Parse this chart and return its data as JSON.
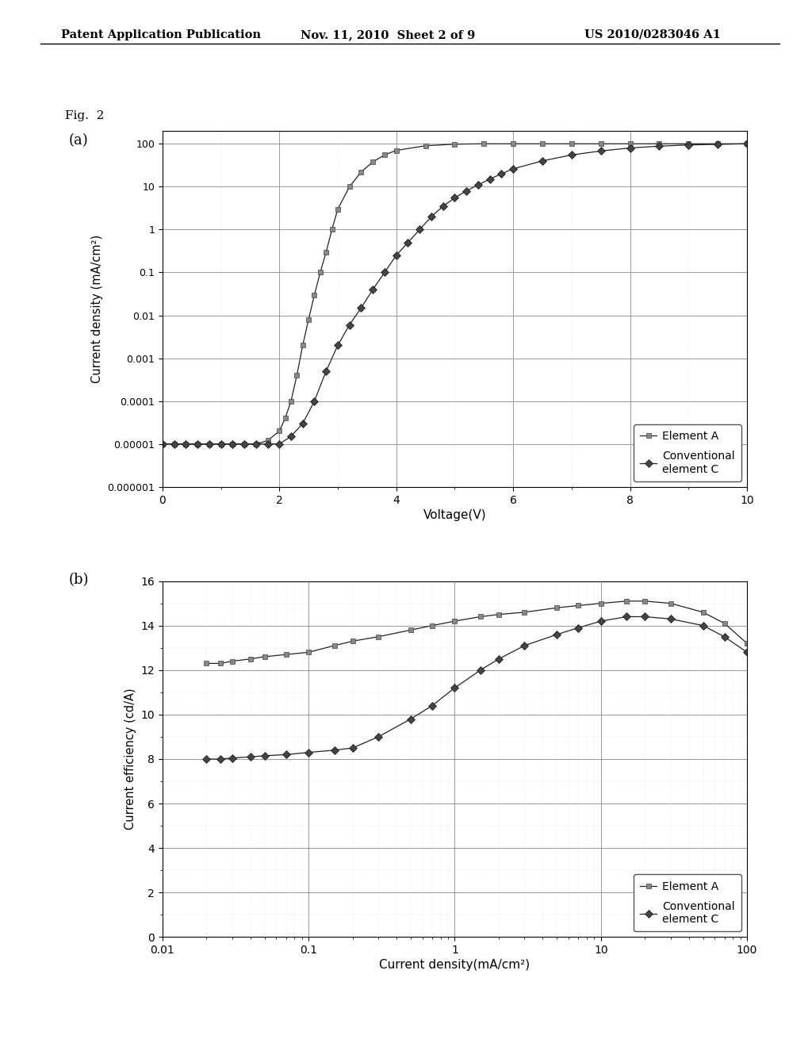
{
  "header_left": "Patent Application Publication",
  "header_mid": "Nov. 11, 2010  Sheet 2 of 9",
  "header_right": "US 2010/0283046 A1",
  "fig_label": "Fig.  2",
  "panel_a_label": "(a)",
  "panel_b_label": "(b)",
  "panel_a": {
    "xlabel": "Voltage(V)",
    "ylabel": "Current density (mA/cm²)",
    "xlim": [
      0,
      10
    ],
    "xticks": [
      0,
      2,
      4,
      6,
      8,
      10
    ],
    "ytick_vals": [
      1e-06,
      1e-05,
      0.0001,
      0.001,
      0.01,
      0.1,
      1,
      10,
      100
    ],
    "ytick_labels": [
      "0.000001",
      "0.00001",
      "0.0001",
      "0.001",
      "0.01",
      "0.1",
      "1",
      "10",
      "100"
    ],
    "element_A_x": [
      0.0,
      0.2,
      0.4,
      0.6,
      0.8,
      1.0,
      1.2,
      1.4,
      1.6,
      1.8,
      2.0,
      2.1,
      2.2,
      2.3,
      2.4,
      2.5,
      2.6,
      2.7,
      2.8,
      2.9,
      3.0,
      3.2,
      3.4,
      3.6,
      3.8,
      4.0,
      4.5,
      5.0,
      5.5,
      6.0,
      6.5,
      7.0,
      7.5,
      8.0,
      8.5,
      9.0,
      9.5,
      10.0
    ],
    "element_A_y": [
      1e-05,
      1e-05,
      1e-05,
      1e-05,
      1e-05,
      1e-05,
      1e-05,
      1e-05,
      1e-05,
      1.2e-05,
      2e-05,
      4e-05,
      0.0001,
      0.0004,
      0.002,
      0.008,
      0.03,
      0.1,
      0.3,
      1.0,
      3.0,
      10.0,
      22.0,
      38.0,
      55.0,
      70.0,
      90.0,
      98.0,
      100.0,
      100.0,
      100.0,
      100.0,
      100.0,
      100.0,
      100.0,
      100.0,
      100.0,
      100.0
    ],
    "element_C_x": [
      0.0,
      0.2,
      0.4,
      0.6,
      0.8,
      1.0,
      1.2,
      1.4,
      1.6,
      1.8,
      2.0,
      2.2,
      2.4,
      2.6,
      2.8,
      3.0,
      3.2,
      3.4,
      3.6,
      3.8,
      4.0,
      4.2,
      4.4,
      4.6,
      4.8,
      5.0,
      5.2,
      5.4,
      5.6,
      5.8,
      6.0,
      6.5,
      7.0,
      7.5,
      8.0,
      8.5,
      9.0,
      9.5,
      10.0
    ],
    "element_C_y": [
      1e-05,
      1e-05,
      1e-05,
      1e-05,
      1e-05,
      1e-05,
      1e-05,
      1e-05,
      1e-05,
      1e-05,
      1e-05,
      1.5e-05,
      3e-05,
      0.0001,
      0.0005,
      0.002,
      0.006,
      0.015,
      0.04,
      0.1,
      0.25,
      0.5,
      1.0,
      2.0,
      3.5,
      5.5,
      8.0,
      11.0,
      15.0,
      20.0,
      26.0,
      40.0,
      55.0,
      68.0,
      80.0,
      88.0,
      94.0,
      97.0,
      100.0
    ],
    "legend_A": "Element A",
    "legend_C": "Conventional\nelement C"
  },
  "panel_b": {
    "xlabel": "Current density(mA/cm²)",
    "ylabel": "Current efficiency (cd/A)",
    "xlim": [
      0.01,
      100
    ],
    "ylim": [
      0,
      16
    ],
    "xtick_vals": [
      0.01,
      0.1,
      1,
      10,
      100
    ],
    "xtick_labels": [
      "0.01",
      "0.1",
      "1",
      "10",
      "100"
    ],
    "yticks": [
      0,
      2,
      4,
      6,
      8,
      10,
      12,
      14,
      16
    ],
    "element_A_x": [
      0.02,
      0.025,
      0.03,
      0.04,
      0.05,
      0.07,
      0.1,
      0.15,
      0.2,
      0.3,
      0.5,
      0.7,
      1.0,
      1.5,
      2.0,
      3.0,
      5.0,
      7.0,
      10.0,
      15.0,
      20.0,
      30.0,
      50.0,
      70.0,
      100.0
    ],
    "element_A_y": [
      12.3,
      12.3,
      12.4,
      12.5,
      12.6,
      12.7,
      12.8,
      13.1,
      13.3,
      13.5,
      13.8,
      14.0,
      14.2,
      14.4,
      14.5,
      14.6,
      14.8,
      14.9,
      15.0,
      15.1,
      15.1,
      15.0,
      14.6,
      14.1,
      13.2
    ],
    "element_C_x": [
      0.02,
      0.025,
      0.03,
      0.04,
      0.05,
      0.07,
      0.1,
      0.15,
      0.2,
      0.3,
      0.5,
      0.7,
      1.0,
      1.5,
      2.0,
      3.0,
      5.0,
      7.0,
      10.0,
      15.0,
      20.0,
      30.0,
      50.0,
      70.0,
      100.0
    ],
    "element_C_y": [
      8.0,
      8.0,
      8.05,
      8.1,
      8.15,
      8.2,
      8.3,
      8.4,
      8.5,
      9.0,
      9.8,
      10.4,
      11.2,
      12.0,
      12.5,
      13.1,
      13.6,
      13.9,
      14.2,
      14.4,
      14.4,
      14.3,
      14.0,
      13.5,
      12.8
    ],
    "legend_A": "Element A",
    "legend_C": "Conventional\nelement C"
  },
  "background_color": "#ffffff",
  "grid_major_color": "#999999",
  "grid_minor_color": "#cccccc",
  "line_color": "#222222",
  "marker_A": "s",
  "marker_C": "D",
  "marker_size_A": 5,
  "marker_size_C": 5,
  "marker_face_A": "#888888",
  "marker_face_C": "#444444",
  "marker_edge_A": "#444444",
  "marker_edge_C": "#111111"
}
